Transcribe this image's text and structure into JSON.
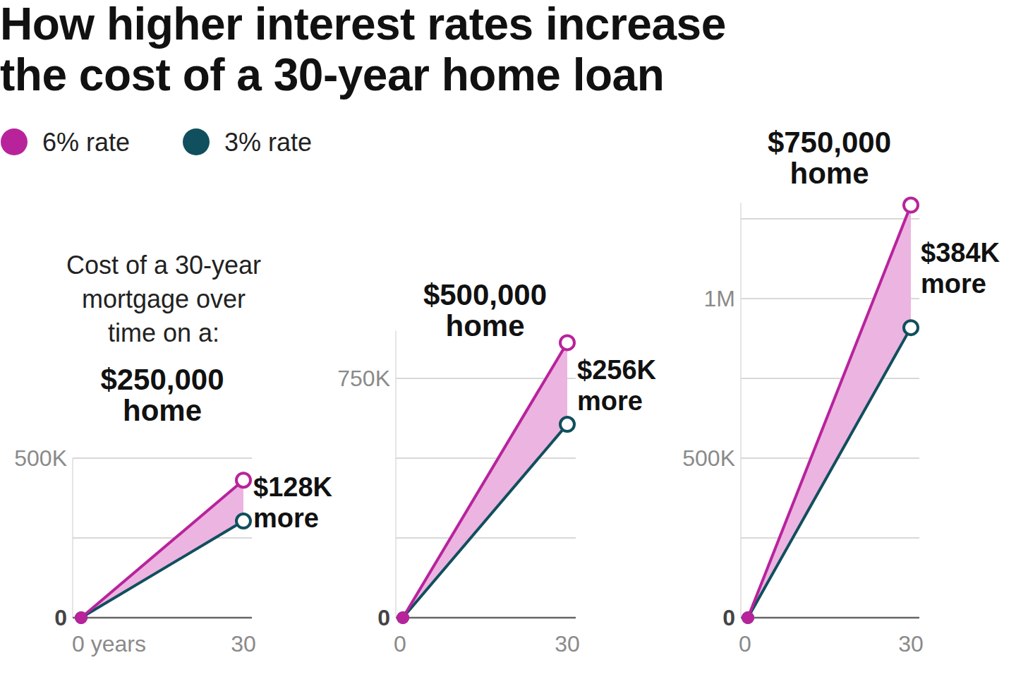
{
  "title": "How higher interest rates increase the cost of a 30-year home loan",
  "subtitle": "Cost of a 30-year mortgage over time on a:",
  "chart_data": [
    {
      "type": "line",
      "title": "$250,000 home",
      "annotation": "$128K more",
      "legend": "top-left",
      "grid": true,
      "x": [
        0,
        30
      ],
      "xlim": [
        0,
        30
      ],
      "xticks": [
        {
          "value": 0,
          "label": "0 years"
        },
        30
      ],
      "ylim": [
        0,
        500000
      ],
      "yticks": [
        0,
        {
          "value": 250000,
          "label": null
        },
        {
          "value": 500000,
          "label": "500K"
        }
      ],
      "series": [
        {
          "name": "6% rate",
          "color": "#b8239c",
          "marker": "circle",
          "values": [
            0,
            431000
          ]
        },
        {
          "name": "3% rate",
          "color": "#104f5e",
          "marker": "circle",
          "values": [
            0,
            303000
          ]
        }
      ]
    },
    {
      "type": "line",
      "title": "$500,000 home",
      "annotation": "$256K more",
      "grid": true,
      "x": [
        0,
        30
      ],
      "xlim": [
        0,
        30
      ],
      "xticks": [
        0,
        30
      ],
      "ylim": [
        0,
        900000
      ],
      "yticks": [
        0,
        {
          "value": 250000,
          "label": null
        },
        {
          "value": 500000,
          "label": null
        },
        {
          "value": 750000,
          "label": "750K"
        }
      ],
      "series": [
        {
          "name": "6% rate",
          "color": "#b8239c",
          "marker": "circle",
          "values": [
            0,
            862000
          ]
        },
        {
          "name": "3% rate",
          "color": "#104f5e",
          "marker": "circle",
          "values": [
            0,
            606000
          ]
        }
      ]
    },
    {
      "type": "line",
      "title": "$750,000 home",
      "annotation": "$384K more",
      "grid": true,
      "x": [
        0,
        30
      ],
      "xlim": [
        0,
        30
      ],
      "xticks": [
        0,
        30
      ],
      "ylim": [
        0,
        1300000
      ],
      "yticks": [
        0,
        {
          "value": 250000,
          "label": null
        },
        {
          "value": 500000,
          "label": "500K"
        },
        {
          "value": 750000,
          "label": null
        },
        {
          "value": 1000000,
          "label": "1M"
        },
        {
          "value": 1250000,
          "label": null
        }
      ],
      "series": [
        {
          "name": "6% rate",
          "color": "#b8239c",
          "marker": "circle",
          "values": [
            0,
            1293000
          ]
        },
        {
          "name": "3% rate",
          "color": "#104f5e",
          "marker": "circle",
          "values": [
            0,
            909000
          ]
        }
      ]
    }
  ]
}
